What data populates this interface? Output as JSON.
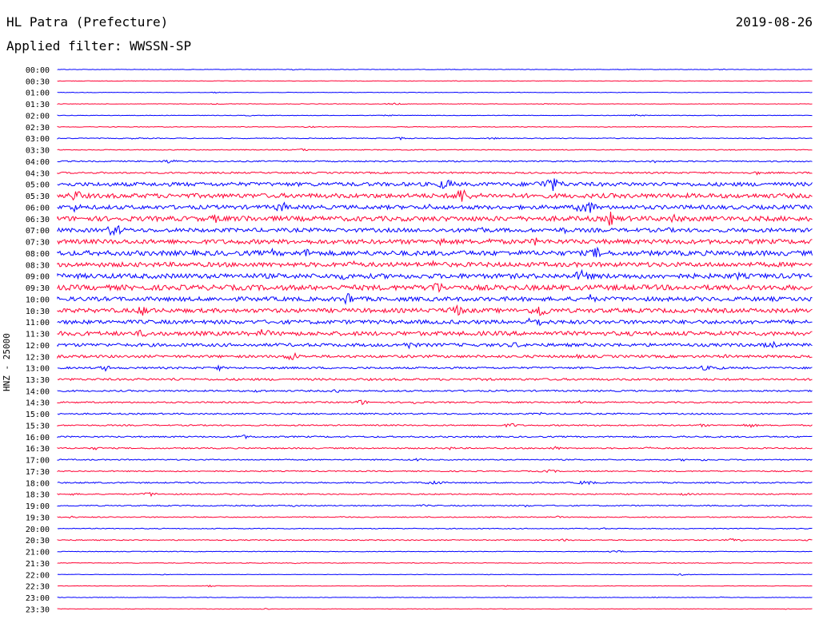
{
  "header": {
    "station": "HL Patra (Prefecture)",
    "date": "2019-08-26",
    "filter_label": "Applied filter: WWSSN-SP"
  },
  "channel_label": "HNZ - 25000",
  "chart_data": {
    "type": "line",
    "title": "HL Patra (Prefecture)",
    "subtitle": "Applied filter: WWSSN-SP",
    "ylabel": "HNZ - 25000",
    "row_labels": [
      "00:00",
      "00:30",
      "01:00",
      "01:30",
      "02:00",
      "02:30",
      "03:00",
      "03:30",
      "04:00",
      "04:30",
      "05:00",
      "05:30",
      "06:00",
      "06:30",
      "07:00",
      "07:30",
      "08:00",
      "08:30",
      "09:00",
      "09:30",
      "10:00",
      "10:30",
      "11:00",
      "11:30",
      "12:00",
      "12:30",
      "13:00",
      "13:30",
      "14:00",
      "14:30",
      "15:00",
      "15:30",
      "16:00",
      "16:30",
      "17:00",
      "17:30",
      "18:00",
      "18:30",
      "19:00",
      "19:30",
      "20:00",
      "20:30",
      "21:00",
      "21:30",
      "22:00",
      "22:30",
      "23:00",
      "23:30"
    ],
    "row_amplitudes": [
      0.3,
      0.3,
      0.3,
      0.3,
      0.3,
      0.4,
      0.5,
      0.5,
      0.8,
      1.0,
      2.4,
      2.8,
      2.5,
      3.0,
      2.4,
      2.8,
      3.0,
      2.8,
      3.0,
      3.2,
      2.6,
      2.6,
      2.4,
      2.6,
      2.0,
      1.6,
      1.2,
      1.3,
      1.0,
      0.9,
      0.9,
      0.8,
      0.9,
      0.8,
      0.7,
      0.7,
      0.8,
      0.7,
      0.7,
      0.6,
      0.5,
      0.6,
      0.4,
      0.4,
      0.3,
      0.3,
      0.3,
      0.3
    ],
    "series_colors": [
      "#0000ff",
      "#ff0033"
    ],
    "grid": false,
    "legend": "none"
  }
}
